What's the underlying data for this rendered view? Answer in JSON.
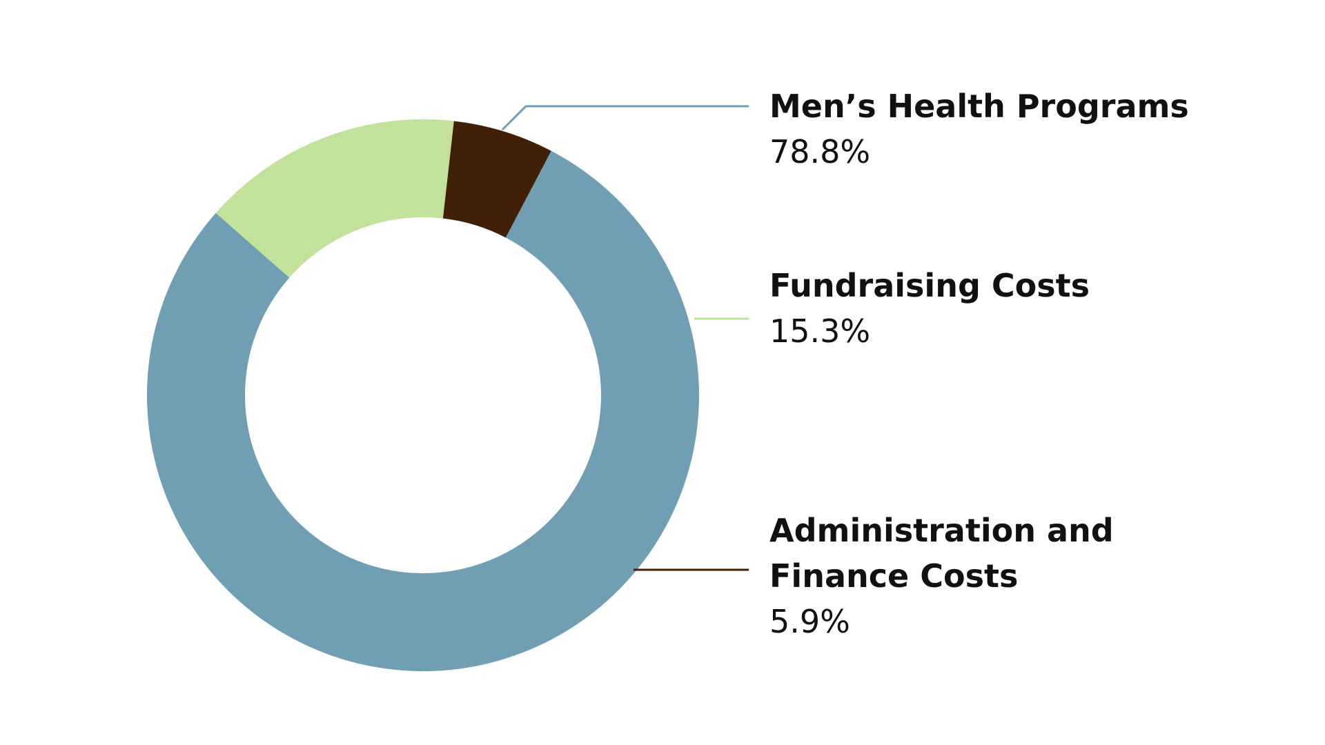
{
  "chart_data": {
    "type": "pie",
    "categories": [
      "Men’s Health Programs",
      "Fundraising Costs",
      "Administration and Finance Costs"
    ],
    "values": [
      78.8,
      15.3,
      5.9
    ],
    "unit": "%",
    "labels": [
      {
        "name_lines": [
          "Men’s Health Programs"
        ],
        "value_text": "78.8%"
      },
      {
        "name_lines": [
          "Fundraising Costs"
        ],
        "value_text": "15.3%"
      },
      {
        "name_lines": [
          "Administration and",
          "Finance Costs"
        ],
        "value_text": "5.9%"
      }
    ],
    "colors": [
      "#709eb3",
      "#c2e19b",
      "#402107"
    ],
    "donut": true,
    "legend": "right"
  }
}
